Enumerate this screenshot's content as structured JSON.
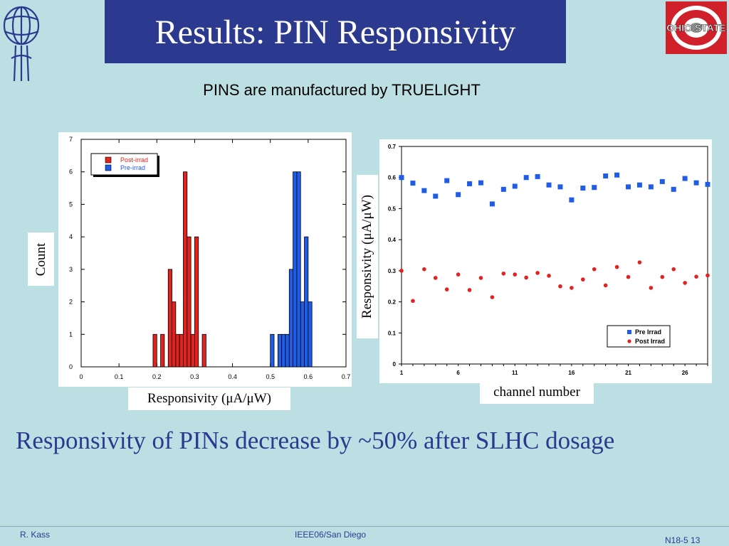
{
  "slide": {
    "title": "Results: PIN Responsivity",
    "subtitle": "PINS are manufactured by TRUELIGHT",
    "conclusion": "Responsivity of PINs decrease by ~50% after SLHC dosage",
    "osu_logo_text": "OHIO STATE",
    "footer": {
      "left": "R. Kass",
      "center": "IEEE06/San Diego",
      "right": "N18-5 13"
    }
  },
  "labels": {
    "count": "Count",
    "responsivity_x": "Responsivity (μA/μW)",
    "responsivity_y": "Responsivity (μA/μW)",
    "channel_number": "channel number"
  },
  "colors": {
    "title_bg": "#2b3a8f",
    "background": "#bcdfe3",
    "post": "#e0231e",
    "pre": "#1f5ce8",
    "osu_red": "#d0202a"
  },
  "chart_data": [
    {
      "type": "bar",
      "subtype": "histogram",
      "xlim": [
        0,
        0.7
      ],
      "ylim": [
        0,
        7
      ],
      "xticks": [
        "0",
        "0.1",
        "0.2",
        "0.3",
        "0.4",
        "0.5",
        "0.6",
        "0.7"
      ],
      "yticks": [
        "0",
        "1",
        "2",
        "3",
        "4",
        "5",
        "6",
        "7"
      ],
      "bin_width": 0.01,
      "legend_position": "top-left",
      "series": [
        {
          "name": "Post-irrad",
          "color": "#e0231e",
          "bins": [
            [
              0.19,
              1
            ],
            [
              0.21,
              1
            ],
            [
              0.23,
              3
            ],
            [
              0.24,
              2
            ],
            [
              0.25,
              1
            ],
            [
              0.26,
              1
            ],
            [
              0.27,
              6
            ],
            [
              0.28,
              4
            ],
            [
              0.29,
              1
            ],
            [
              0.3,
              4
            ],
            [
              0.32,
              1
            ]
          ]
        },
        {
          "name": "Pre-irrad",
          "color": "#1f5ce8",
          "bins": [
            [
              0.5,
              1
            ],
            [
              0.52,
              1
            ],
            [
              0.53,
              1
            ],
            [
              0.54,
              1
            ],
            [
              0.55,
              3
            ],
            [
              0.56,
              6
            ],
            [
              0.57,
              6
            ],
            [
              0.58,
              2
            ],
            [
              0.59,
              4
            ],
            [
              0.6,
              2
            ]
          ]
        }
      ]
    },
    {
      "type": "scatter",
      "xlim": [
        1,
        28
      ],
      "ylim": [
        0,
        0.7
      ],
      "xticks": [
        "1",
        "6",
        "11",
        "16",
        "21",
        "26"
      ],
      "yticks": [
        "0",
        "0.1",
        "0.2",
        "0.3",
        "0.4",
        "0.5",
        "0.6",
        "0.7"
      ],
      "legend_position": "bottom-right",
      "series": [
        {
          "name": "Pre Irrad",
          "marker": "square",
          "color": "#1f5ce8",
          "x": [
            1,
            2,
            3,
            4,
            5,
            6,
            7,
            8,
            9,
            10,
            11,
            12,
            13,
            14,
            15,
            16,
            17,
            18,
            19,
            20,
            21,
            22,
            23,
            24,
            25,
            26,
            27,
            28
          ],
          "y": [
            0.6,
            0.582,
            0.558,
            0.54,
            0.59,
            0.545,
            0.58,
            0.583,
            0.515,
            0.562,
            0.572,
            0.6,
            0.603,
            0.576,
            0.57,
            0.528,
            0.566,
            0.568,
            0.605,
            0.608,
            0.57,
            0.576,
            0.57,
            0.587,
            0.562,
            0.597,
            0.583,
            0.578
          ]
        },
        {
          "name": "Post Irrad",
          "marker": "circle",
          "color": "#e0231e",
          "x": [
            1,
            2,
            3,
            4,
            5,
            6,
            7,
            8,
            9,
            10,
            11,
            12,
            13,
            14,
            15,
            16,
            17,
            18,
            19,
            20,
            21,
            22,
            23,
            24,
            25,
            26,
            27,
            28
          ],
          "y": [
            0.3,
            0.203,
            0.305,
            0.277,
            0.24,
            0.288,
            0.238,
            0.277,
            0.215,
            0.291,
            0.288,
            0.278,
            0.293,
            0.284,
            0.25,
            0.245,
            0.272,
            0.305,
            0.253,
            0.312,
            0.28,
            0.327,
            0.245,
            0.28,
            0.305,
            0.261,
            0.281,
            0.285
          ]
        }
      ]
    }
  ]
}
